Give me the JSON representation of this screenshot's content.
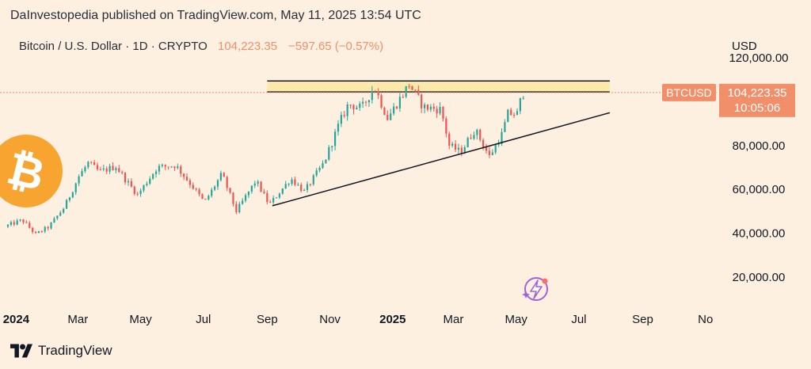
{
  "header": {
    "published": "DaInvestopedia published on TradingView.com, May 11, 2025 13:54 UTC"
  },
  "footer": {
    "brand": "TradingView"
  },
  "colors": {
    "background": "#fdf0e1",
    "up": "#26a69a",
    "down": "#ef5350",
    "price_label": "#f08f6a",
    "resistance_zone": "#fce9a9",
    "bitcoin_orange": "#f7a530"
  },
  "icons": [
    "bitcoin-logo-icon",
    "sparkle-lightning-icon",
    "tradingview-logo-icon"
  ],
  "chart_data": {
    "type": "candlestick",
    "symbol_legend": {
      "name": "Bitcoin / U.S. Dollar · 1D · CRYPTO",
      "last": "104,223.35",
      "change": "−597.65 (−0.57%)"
    },
    "currency": "USD",
    "y_ticks": [
      "120,000.00",
      "80,000.00",
      "60,000.00",
      "40,000.00",
      "20,000.00"
    ],
    "y_tick_values": [
      120000,
      80000,
      60000,
      40000,
      20000
    ],
    "ylim": [
      8000,
      132000
    ],
    "x_ticks": [
      "2024",
      "Mar",
      "May",
      "Jul",
      "Sep",
      "Nov",
      "2025",
      "Mar",
      "May",
      "Jul",
      "Sep",
      "No"
    ],
    "x_tick_dates": [
      "2024-01-01",
      "2024-03-01",
      "2024-05-01",
      "2024-07-01",
      "2024-09-01",
      "2024-11-01",
      "2025-01-01",
      "2025-03-01",
      "2025-05-01",
      "2025-07-01",
      "2025-09-01",
      "2025-11-01"
    ],
    "xlim": [
      "2023-12-24",
      "2025-11-12"
    ],
    "last_price": {
      "label": "BTCUSD",
      "value": "104,223.35",
      "countdown": "10:05:06",
      "y": 104223.35
    },
    "series_path": [
      [
        "2023-12-24",
        43000
      ],
      [
        "2024-01-10",
        46000
      ],
      [
        "2024-01-23",
        39500
      ],
      [
        "2024-02-05",
        43000
      ],
      [
        "2024-02-20",
        52000
      ],
      [
        "2024-03-05",
        66000
      ],
      [
        "2024-03-14",
        72000
      ],
      [
        "2024-03-25",
        68000
      ],
      [
        "2024-04-10",
        70500
      ],
      [
        "2024-04-20",
        64000
      ],
      [
        "2024-05-01",
        57500
      ],
      [
        "2024-05-20",
        70000
      ],
      [
        "2024-06-07",
        71000
      ],
      [
        "2024-06-24",
        61000
      ],
      [
        "2024-07-05",
        54000
      ],
      [
        "2024-07-22",
        67000
      ],
      [
        "2024-08-05",
        50000
      ],
      [
        "2024-08-24",
        64000
      ],
      [
        "2024-09-06",
        53000
      ],
      [
        "2024-09-27",
        65000
      ],
      [
        "2024-10-10",
        59000
      ],
      [
        "2024-10-29",
        72000
      ],
      [
        "2024-11-13",
        90000
      ],
      [
        "2024-11-22",
        99000
      ],
      [
        "2024-12-05",
        97000
      ],
      [
        "2024-12-17",
        107000
      ],
      [
        "2024-12-30",
        92500
      ],
      [
        "2025-01-20",
        108000
      ],
      [
        "2025-02-03",
        97500
      ],
      [
        "2025-02-20",
        96500
      ],
      [
        "2025-02-28",
        80000
      ],
      [
        "2025-03-11",
        77000
      ],
      [
        "2025-03-25",
        87500
      ],
      [
        "2025-04-08",
        75000
      ],
      [
        "2025-04-20",
        85000
      ],
      [
        "2025-04-26",
        94500
      ],
      [
        "2025-05-05",
        94500
      ],
      [
        "2025-05-10",
        104000
      ]
    ],
    "annotations": {
      "resistance_zone": {
        "start": "2024-09-01",
        "end": "2025-07-31",
        "low": 104500,
        "high": 109500
      },
      "support_trendline": {
        "start": [
          "2024-09-06",
          52500
        ],
        "end": [
          "2025-07-31",
          95000
        ]
      }
    },
    "grid": false
  }
}
